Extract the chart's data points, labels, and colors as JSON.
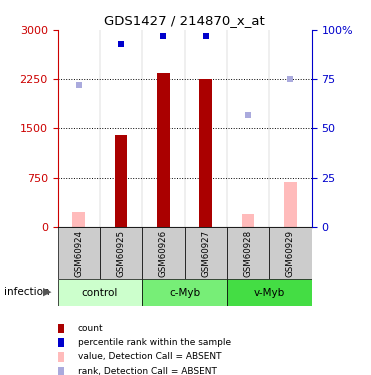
{
  "title": "GDS1427 / 214870_x_at",
  "samples": [
    "GSM60924",
    "GSM60925",
    "GSM60926",
    "GSM60927",
    "GSM60928",
    "GSM60929"
  ],
  "count_values": [
    0,
    1400,
    2350,
    2250,
    0,
    0
  ],
  "absent_value_bars": [
    220,
    0,
    0,
    0,
    200,
    680
  ],
  "percentile_ranks": [
    0,
    93,
    97,
    97,
    0,
    0
  ],
  "absent_ranks": [
    72,
    0,
    0,
    0,
    57,
    75
  ],
  "left_ylim": [
    0,
    3000
  ],
  "right_ylim": [
    0,
    100
  ],
  "left_yticks": [
    0,
    750,
    1500,
    2250,
    3000
  ],
  "right_yticks": [
    0,
    25,
    50,
    75,
    100
  ],
  "right_yticklabels": [
    "0",
    "25",
    "50",
    "75",
    "100%"
  ],
  "groups": [
    {
      "label": "control",
      "samples": [
        0,
        1
      ],
      "color": "#ccffcc"
    },
    {
      "label": "c-Myb",
      "samples": [
        2,
        3
      ],
      "color": "#77ee77"
    },
    {
      "label": "v-Myb",
      "samples": [
        4,
        5
      ],
      "color": "#44dd44"
    }
  ],
  "group_header": "infection",
  "bar_width": 0.3,
  "count_color": "#aa0000",
  "absent_value_color": "#ffbbbb",
  "percentile_color": "#0000cc",
  "absent_rank_color": "#aaaadd",
  "left_axis_color": "#cc0000",
  "right_axis_color": "#0000cc",
  "sample_box_color": "#cccccc",
  "plot_bg": "#ffffff",
  "marker_size": 5
}
